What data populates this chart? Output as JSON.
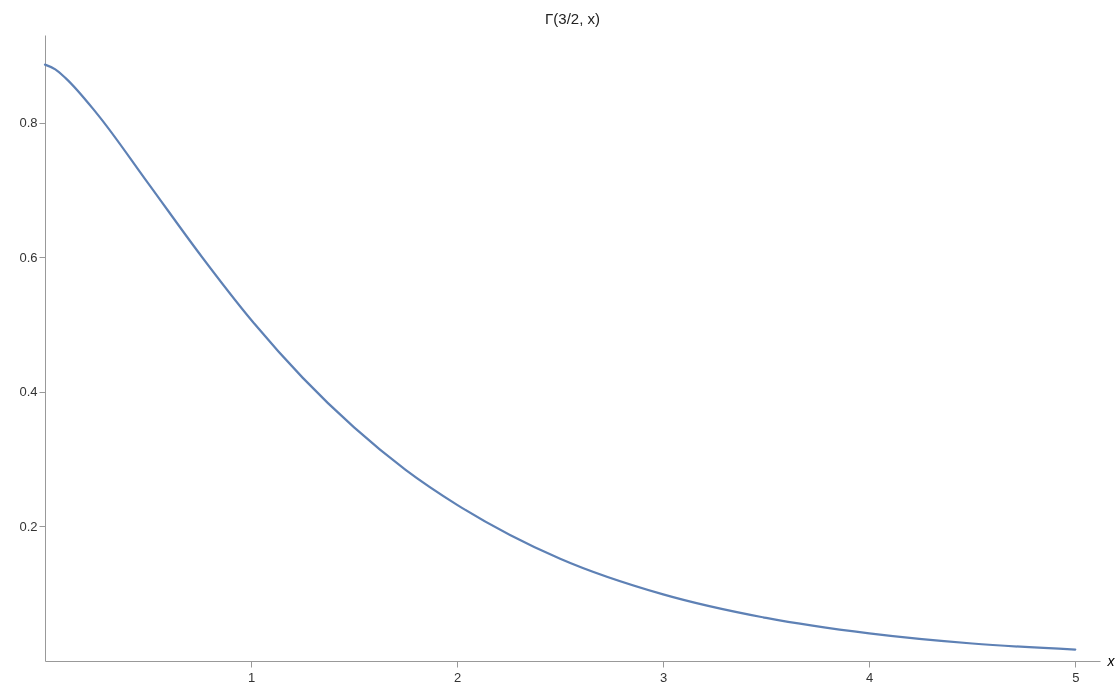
{
  "chart_data": {
    "type": "line",
    "title": "Γ(3/2, x)",
    "xlabel": "x",
    "x": [
      0,
      0.05,
      0.1,
      0.25,
      0.5,
      0.75,
      1,
      1.25,
      1.5,
      1.75,
      2,
      2.5,
      3,
      3.5,
      4,
      4.5,
      5
    ],
    "series": [
      {
        "color": "#5e81b5",
        "values": [
          0.886,
          0.879,
          0.866,
          0.814,
          0.71,
          0.605,
          0.507,
          0.421,
          0.347,
          0.284,
          0.232,
          0.152,
          0.099,
          0.064,
          0.041,
          0.026,
          0.017
        ]
      }
    ],
    "xlim": [
      0,
      5.12
    ],
    "ylim": [
      0,
      0.93
    ],
    "xticks": [
      1,
      2,
      3,
      4,
      5
    ],
    "yticks": [
      0.2,
      0.4,
      0.6,
      0.8
    ],
    "grid": false,
    "legend": false,
    "marker": "none",
    "line_style": "solid"
  }
}
